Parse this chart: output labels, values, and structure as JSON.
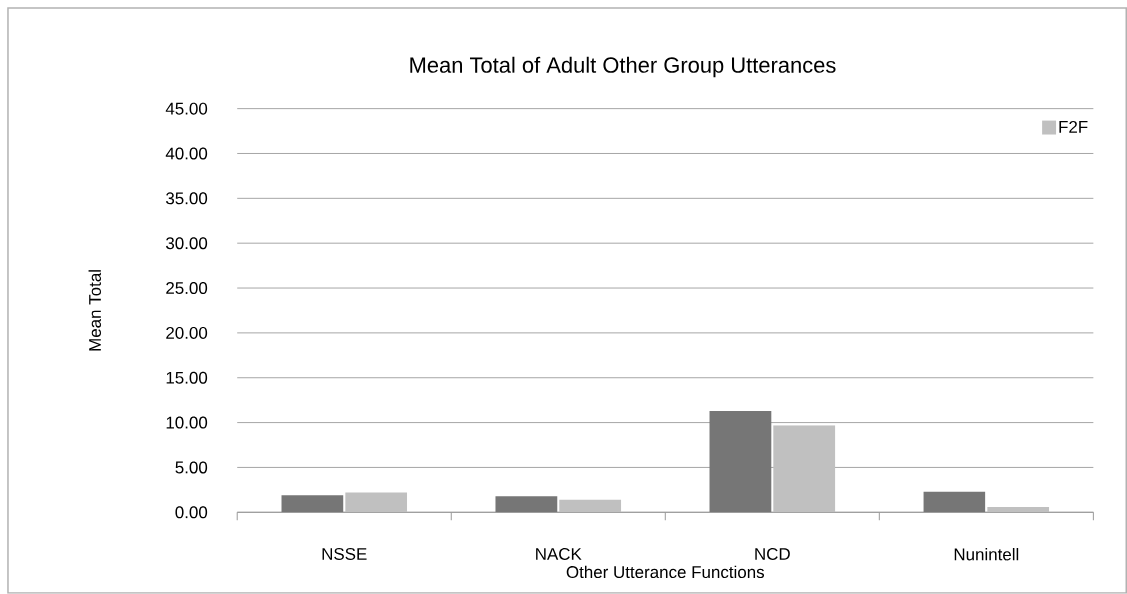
{
  "chart_data": {
    "type": "bar",
    "title": "Mean Total of Adult Other Group Utterances",
    "xlabel": "Other Utterance Functions",
    "ylabel": "Mean Total",
    "categories": [
      "NSSE",
      "NACK",
      "NCD",
      "Nunintell"
    ],
    "series": [
      {
        "color": "#767676",
        "values": [
          1.9,
          1.8,
          11.3,
          2.3
        ]
      },
      {
        "name": "F2F",
        "color": "#c0c0c0",
        "values": [
          2.2,
          1.4,
          9.7,
          0.6
        ]
      }
    ],
    "ylim": [
      0,
      45
    ],
    "yticks": [
      {
        "value": 0,
        "label": "0.00"
      },
      {
        "value": 5,
        "label": "5.00"
      },
      {
        "value": 10,
        "label": "10.00"
      },
      {
        "value": 15,
        "label": "15.00"
      },
      {
        "value": 20,
        "label": "20.00"
      },
      {
        "value": 25,
        "label": "25.00"
      },
      {
        "value": 30,
        "label": "30.00"
      },
      {
        "value": 35,
        "label": "35.00"
      },
      {
        "value": 40,
        "label": "40.00"
      },
      {
        "value": 45,
        "label": "45.00"
      }
    ],
    "grid": "y",
    "legend": "top right"
  }
}
